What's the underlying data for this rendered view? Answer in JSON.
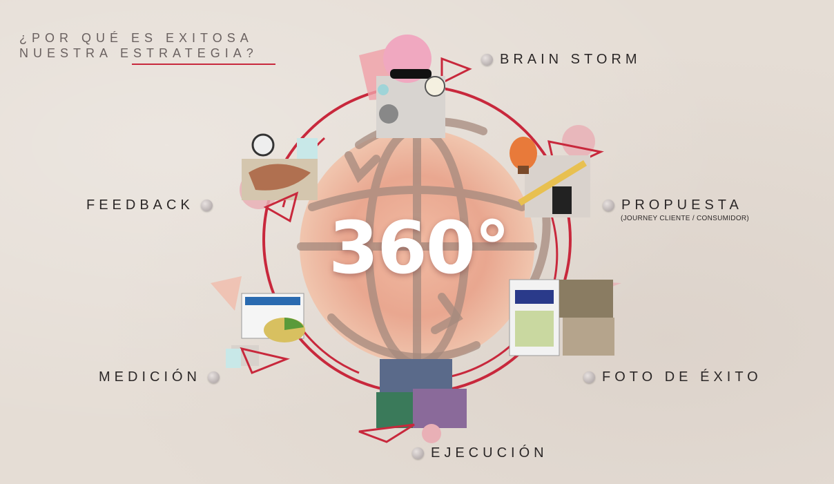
{
  "title": {
    "line1": "¿POR QUÉ ES EXITOSA",
    "line2": "NUESTRA ESTRATEGIA?"
  },
  "center": {
    "label": "360°"
  },
  "steps": {
    "brainstorm": "BRAIN STORM",
    "propuesta": "PROPUESTA",
    "propuesta_sub": "(JOURNEY CLIENTE / CONSUMIDOR)",
    "foto_exito": "FOTO DE ÉXITO",
    "ejecucion": "EJECUCIÓN",
    "medicion": "MEDICIÓN",
    "feedback": "FEEDBACK"
  },
  "colors": {
    "accent": "#c8283c",
    "globe": "#e8a890",
    "text": "#2b2727"
  }
}
